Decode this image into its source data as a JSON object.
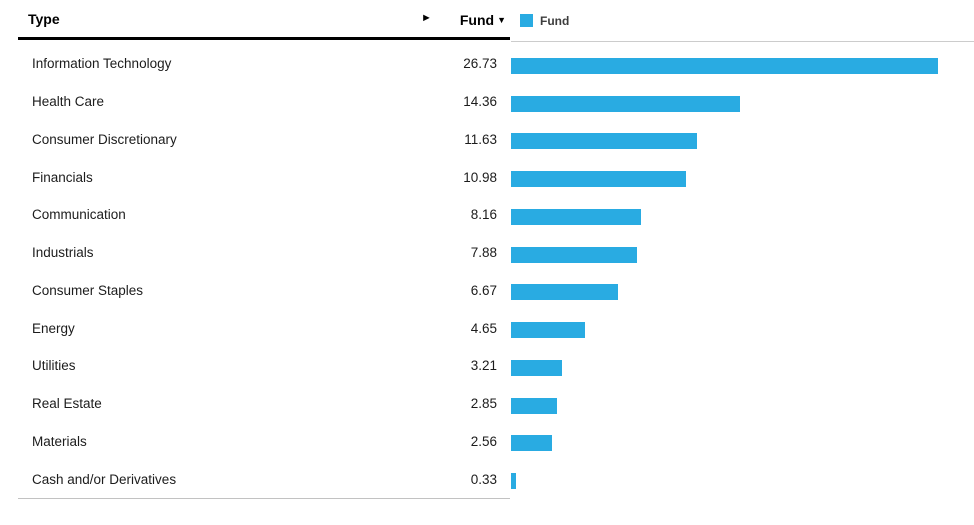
{
  "header": {
    "type_label": "Type",
    "fund_label": "Fund",
    "sort_indicator": "▼",
    "scroll_arrow": "►"
  },
  "legend": {
    "label": "Fund",
    "color": "#29ABE2"
  },
  "rows": [
    {
      "type": "Information Technology",
      "fund": "26.73"
    },
    {
      "type": "Health Care",
      "fund": "14.36"
    },
    {
      "type": "Consumer Discretionary",
      "fund": "11.63"
    },
    {
      "type": "Financials",
      "fund": "10.98"
    },
    {
      "type": "Communication",
      "fund": "8.16"
    },
    {
      "type": "Industrials",
      "fund": "7.88"
    },
    {
      "type": "Consumer Staples",
      "fund": "6.67"
    },
    {
      "type": "Energy",
      "fund": "4.65"
    },
    {
      "type": "Utilities",
      "fund": "3.21"
    },
    {
      "type": "Real Estate",
      "fund": "2.85"
    },
    {
      "type": "Materials",
      "fund": "2.56"
    },
    {
      "type": "Cash and/or Derivatives",
      "fund": "0.33"
    }
  ],
  "chart_data": {
    "type": "bar",
    "orientation": "horizontal",
    "title": "",
    "xlabel": "Type",
    "ylabel": "Fund",
    "categories": [
      "Information Technology",
      "Health Care",
      "Consumer Discretionary",
      "Financials",
      "Communication",
      "Industrials",
      "Consumer Staples",
      "Energy",
      "Utilities",
      "Real Estate",
      "Materials",
      "Cash and/or Derivatives"
    ],
    "series": [
      {
        "name": "Fund",
        "values": [
          26.73,
          14.36,
          11.63,
          10.98,
          8.16,
          7.88,
          6.67,
          4.65,
          3.21,
          2.85,
          2.56,
          0.33
        ]
      }
    ],
    "bar_color": "#29ABE2",
    "legend_position": "top-left",
    "xlim": [
      0,
      28
    ],
    "grid": false,
    "sort": "descending"
  }
}
